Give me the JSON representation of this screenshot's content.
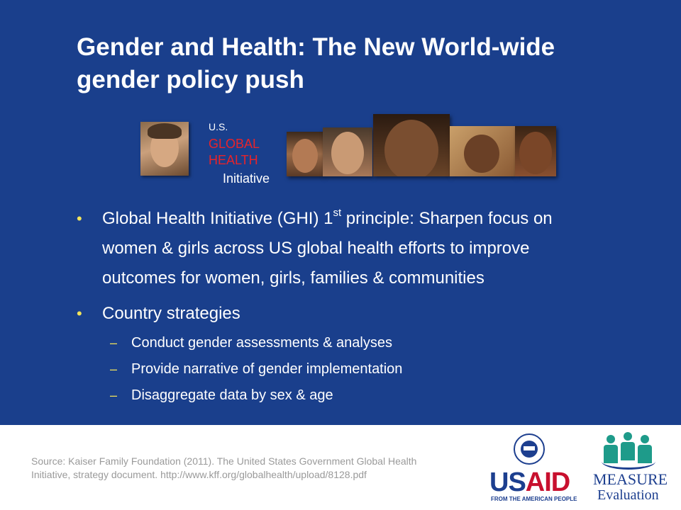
{
  "slide": {
    "title_line1": "Gender and Health: The New World-wide",
    "title_line2": "gender policy push",
    "background_color": "#1a3f8c"
  },
  "ghi_logo": {
    "us": "U.S.",
    "global": "GLOBAL",
    "health": "HEALTH",
    "initiative": "Initiative"
  },
  "bullets": {
    "b1_part1": "Global Health Initiative (GHI) 1",
    "b1_sup": "st",
    "b1_part2": " principle: Sharpen focus on",
    "b1_line2": "women & girls across US global health efforts to improve",
    "b1_line3": "outcomes for women, girls, families & communities",
    "b2": "Country strategies",
    "bullet_symbol": "•",
    "sub_symbol": "–",
    "subs": [
      "Conduct gender assessments & analyses",
      "Provide narrative of gender implementation",
      "Disaggregate data by sex & age"
    ]
  },
  "footer": {
    "source_line1": "Source: Kaiser Family Foundation (2011). The United States Government Global Health",
    "source_line2": "Initiative, strategy document. http://www.kff.org/globalhealth/upload/8128.pdf",
    "usaid_word_us": "US",
    "usaid_word_aid": "AID",
    "usaid_tag": "FROM THE AMERICAN PEOPLE",
    "measure_word": "MEASURE",
    "measure_eval": "Evaluation"
  }
}
